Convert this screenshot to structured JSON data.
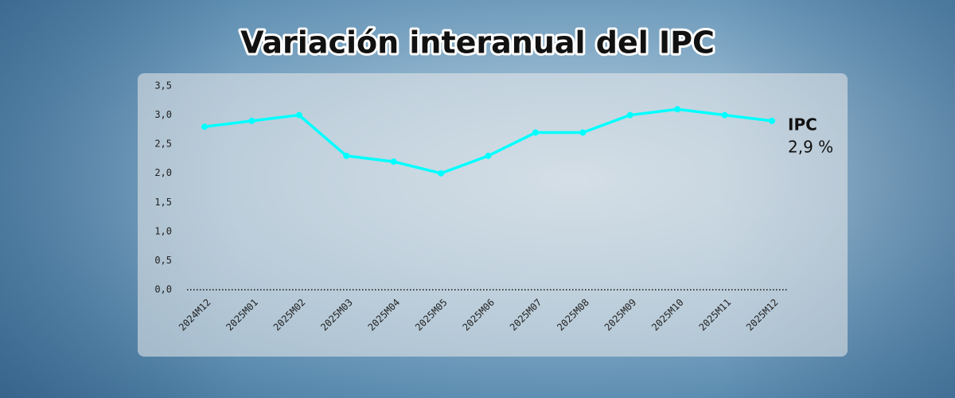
{
  "chart_data": {
    "type": "line",
    "title": "Variación interanual del IPC",
    "categories": [
      "2024M12",
      "2025M01",
      "2025M02",
      "2025M03",
      "2025M04",
      "2025M05",
      "2025M06",
      "2025M07",
      "2025M08",
      "2025M09",
      "2025M10",
      "2025M11",
      "2025M12"
    ],
    "series": [
      {
        "name": "IPC",
        "color": "#00ffff",
        "values": [
          2.8,
          2.9,
          3.0,
          2.3,
          2.2,
          2.0,
          2.3,
          2.7,
          2.7,
          3.0,
          3.1,
          3.0,
          2.9
        ],
        "value_labels": [
          null,
          null,
          null,
          null,
          null,
          null,
          null,
          null,
          null,
          null,
          null,
          null,
          "2,9 %"
        ]
      }
    ],
    "ylim": [
      0,
      3.5
    ],
    "yticks": [
      {
        "value": 0,
        "label": "0,0"
      },
      {
        "value": 0.5,
        "label": "0,5"
      },
      {
        "value": 1,
        "label": "1,0"
      },
      {
        "value": 1.5,
        "label": "1,5"
      },
      {
        "value": 2,
        "label": "2,0"
      },
      {
        "value": 2.5,
        "label": "2,5"
      },
      {
        "value": 3,
        "label": "3,0"
      },
      {
        "value": 3.5,
        "label": "3,5"
      }
    ],
    "grid": false
  }
}
